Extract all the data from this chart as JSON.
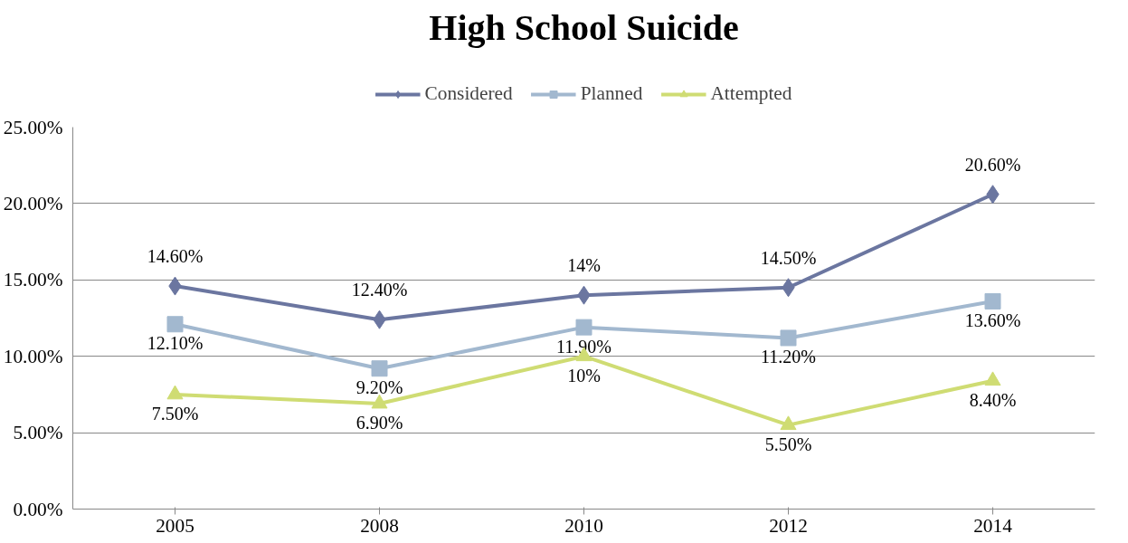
{
  "chart_data": {
    "type": "line",
    "title": "High School Suicide",
    "categories": [
      "2005",
      "2008",
      "2010",
      "2012",
      "2014"
    ],
    "series": [
      {
        "name": "Considered",
        "color": "#6b76a0",
        "marker": "diamond",
        "values": [
          14.6,
          12.4,
          14,
          14.5,
          20.6
        ],
        "value_labels": [
          "14.60%",
          "12.40%",
          "14%",
          "14.50%",
          "20.60%"
        ]
      },
      {
        "name": "Planned",
        "color": "#a2b8cf",
        "marker": "square",
        "values": [
          12.1,
          9.2,
          11.9,
          11.2,
          13.6
        ],
        "value_labels": [
          "12.10%",
          "9.20%",
          "11.90%",
          "11.20%",
          "13.60%"
        ]
      },
      {
        "name": "Attempted",
        "color": "#cfdc73",
        "marker": "triangle",
        "values": [
          7.5,
          6.9,
          10,
          5.5,
          8.4
        ],
        "value_labels": [
          "7.50%",
          "6.90%",
          "10%",
          "5.50%",
          "8.40%"
        ]
      }
    ],
    "ylim": [
      0,
      25
    ],
    "yticks": [
      {
        "value": 0,
        "label": "0.00%"
      },
      {
        "value": 5,
        "label": "5.00%"
      },
      {
        "value": 10,
        "label": "10.00%"
      },
      {
        "value": 15,
        "label": "15.00%"
      },
      {
        "value": 20,
        "label": "20.00%"
      },
      {
        "value": 25,
        "label": "25.00%"
      }
    ],
    "grid": "y",
    "legend": "top",
    "line_style": "solid"
  }
}
